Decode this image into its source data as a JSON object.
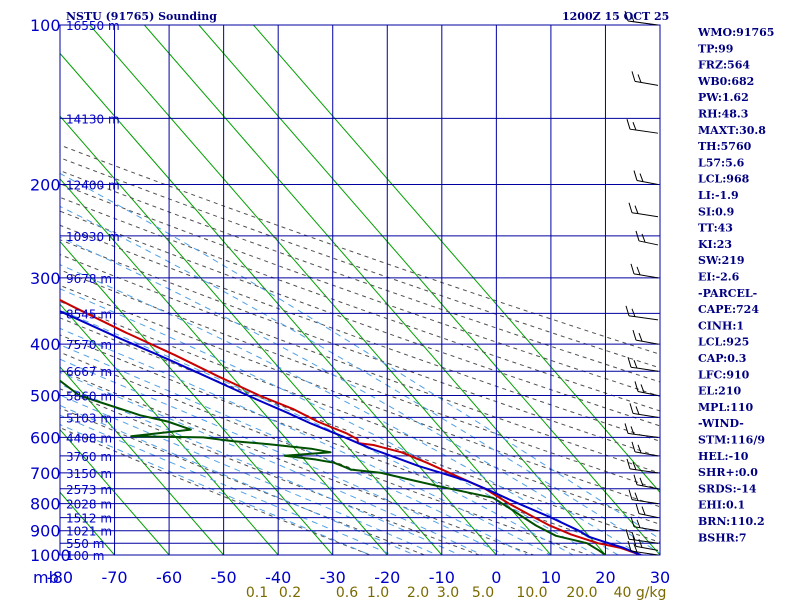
{
  "header": {
    "station": "NSTU (91765) Sounding",
    "time": "1200Z 15 OCT 25"
  },
  "chart_data": {
    "type": "line",
    "xlim": [
      -80,
      30
    ],
    "ylim_hpa": [
      100,
      1000
    ],
    "y_axis_unit": "mb",
    "x_tick_labels": [
      "-80",
      "-70",
      "-60",
      "-50",
      "-40",
      "-30",
      "-20",
      "-10",
      "0",
      "10",
      "20",
      "30"
    ],
    "pressure_ticks": [
      100,
      200,
      300,
      400,
      500,
      600,
      700,
      800,
      900,
      1000
    ],
    "height_labels": [
      {
        "p": 100,
        "label": "16550 m"
      },
      {
        "p": 150,
        "label": "14130 m"
      },
      {
        "p": 200,
        "label": "12400 m"
      },
      {
        "p": 250,
        "label": "10930 m"
      },
      {
        "p": 300,
        "label": "9678 m"
      },
      {
        "p": 350,
        "label": "8545 m"
      },
      {
        "p": 400,
        "label": "7570 m"
      },
      {
        "p": 450,
        "label": "6667 m"
      },
      {
        "p": 500,
        "label": "5860 m"
      },
      {
        "p": 550,
        "label": "5103 m"
      },
      {
        "p": 600,
        "label": "4408 m"
      },
      {
        "p": 650,
        "label": "3760 m"
      },
      {
        "p": 700,
        "label": "3150 m"
      },
      {
        "p": 750,
        "label": "2573 m"
      },
      {
        "p": 800,
        "label": "2028 m"
      },
      {
        "p": 850,
        "label": "1512 m"
      },
      {
        "p": 900,
        "label": "1021 m"
      },
      {
        "p": 950,
        "label": "550 m"
      },
      {
        "p": 1000,
        "label": "100 m"
      }
    ],
    "mixing_ratio_labels": [
      "0.1",
      "0.2",
      "0.6",
      "1.0",
      "2.0",
      "3.0",
      "5.0",
      "10.0",
      "20.0",
      "40 g/kg"
    ],
    "series": [
      {
        "key": "temperature",
        "color": "#c80000",
        "points": [
          [
            26.5,
            1000
          ],
          [
            24,
            970
          ],
          [
            20.5,
            950
          ],
          [
            17,
            915
          ],
          [
            14.5,
            880
          ],
          [
            13,
            850
          ],
          [
            10.5,
            800
          ],
          [
            8.5,
            750
          ],
          [
            4.5,
            700
          ],
          [
            2,
            670
          ],
          [
            -1,
            640
          ],
          [
            -5,
            620
          ],
          [
            -7.5,
            615
          ],
          [
            -7,
            605
          ],
          [
            -8,
            590
          ],
          [
            -11.5,
            560
          ],
          [
            -14,
            530
          ],
          [
            -18,
            500
          ],
          [
            -22.5,
            460
          ],
          [
            -27,
            420
          ],
          [
            -32.5,
            380
          ],
          [
            -38,
            340
          ],
          [
            -43,
            305
          ],
          [
            -50,
            270
          ],
          [
            -60,
            225
          ],
          [
            -66,
            200
          ],
          [
            -73,
            170
          ],
          [
            -85,
            140
          ],
          [
            -99,
            100
          ]
        ]
      },
      {
        "key": "dewpoint",
        "color": "#005000",
        "points": [
          [
            20,
            1000
          ],
          [
            19.5,
            980
          ],
          [
            18.5,
            950
          ],
          [
            14,
            920
          ],
          [
            12,
            880
          ],
          [
            11,
            850
          ],
          [
            10,
            820
          ],
          [
            8.5,
            780
          ],
          [
            1,
            745
          ],
          [
            -4,
            720
          ],
          [
            -8,
            700
          ],
          [
            -13,
            690
          ],
          [
            -15,
            670
          ],
          [
            -18,
            660
          ],
          [
            -23,
            650
          ],
          [
            -14,
            640
          ],
          [
            -17,
            630
          ],
          [
            -24,
            618
          ],
          [
            -30,
            610
          ],
          [
            -35,
            600
          ],
          [
            -48,
            597
          ],
          [
            -36,
            580
          ],
          [
            -39,
            560
          ],
          [
            -43,
            545
          ],
          [
            -51,
            500
          ],
          [
            -53,
            450
          ],
          [
            -54,
            400
          ],
          [
            -57,
            350
          ],
          [
            -60,
            300
          ],
          [
            -75,
            250
          ],
          [
            -85,
            200
          ],
          [
            -106,
            150
          ]
        ]
      },
      {
        "key": "parcel",
        "color": "#0000c8",
        "points": [
          [
            26.5,
            1000
          ],
          [
            24.5,
            970
          ],
          [
            21.5,
            940
          ],
          [
            20,
            925
          ],
          [
            19,
            900
          ],
          [
            16,
            850
          ],
          [
            11.5,
            790
          ],
          [
            9,
            755
          ],
          [
            6.5,
            725
          ],
          [
            3,
            700
          ],
          [
            0,
            680
          ],
          [
            -3.5,
            650
          ],
          [
            -6,
            630
          ],
          [
            -9,
            600
          ],
          [
            -13,
            565
          ],
          [
            -15.5,
            540
          ],
          [
            -19,
            510
          ],
          [
            -23,
            475
          ],
          [
            -26,
            450
          ],
          [
            -30,
            420
          ],
          [
            -34.5,
            390
          ],
          [
            -39,
            360
          ],
          [
            -44,
            330
          ],
          [
            -50,
            300
          ],
          [
            -57,
            260
          ],
          [
            -63,
            230
          ],
          [
            -69,
            200
          ],
          [
            -81,
            160
          ],
          [
            -100,
            120
          ]
        ]
      }
    ]
  },
  "indices": [
    "WMO:91765",
    "TP:99",
    "FRZ:564",
    "WB0:682",
    "PW:1.62",
    "RH:48.3",
    "MAXT:30.8",
    "TH:5760",
    "L57:5.6",
    "LCL:968",
    "LI:-1.9",
    "SI:0.9",
    "TT:43",
    "KI:23",
    "SW:219",
    "EI:-2.6",
    "-PARCEL-",
    "CAPE:724",
    "CINH:1",
    "LCL:925",
    "CAP:0.3",
    "LFC:910",
    "EL:210",
    "MPL:110",
    "-WIND-",
    "STM:116/9",
    "HEL:-10",
    "SHR+:0.0",
    "SRDS:-14",
    "EHI:0.1",
    "BRN:110.2",
    "BSHR:7"
  ],
  "colors": {
    "grid": "#0000a0",
    "isotherm": "#00a000",
    "dry_adiabat": "#505050",
    "moist_adiabat": "#50a0e6",
    "wind": "#000000"
  }
}
